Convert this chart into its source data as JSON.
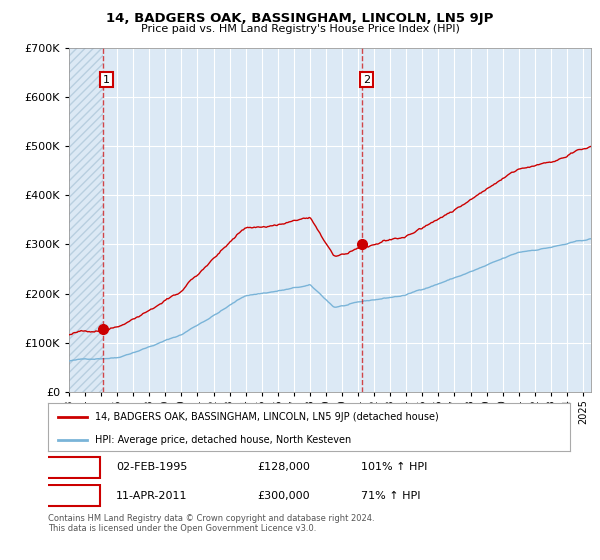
{
  "title": "14, BADGERS OAK, BASSINGHAM, LINCOLN, LN5 9JP",
  "subtitle": "Price paid vs. HM Land Registry's House Price Index (HPI)",
  "legend_line1": "14, BADGERS OAK, BASSINGHAM, LINCOLN, LN5 9JP (detached house)",
  "legend_line2": "HPI: Average price, detached house, North Kesteven",
  "annotation1_date": "02-FEB-1995",
  "annotation1_price": "£128,000",
  "annotation1_hpi": "101% ↑ HPI",
  "annotation2_date": "11-APR-2011",
  "annotation2_price": "£300,000",
  "annotation2_hpi": "71% ↑ HPI",
  "copyright": "Contains HM Land Registry data © Crown copyright and database right 2024.\nThis data is licensed under the Open Government Licence v3.0.",
  "hpi_color": "#7ab4d8",
  "price_color": "#cc0000",
  "bg_color": "#dce9f5",
  "hatch_color": "#b8cfe0",
  "grid_color": "#ffffff",
  "ylim": [
    0,
    700000
  ],
  "yticks": [
    0,
    100000,
    200000,
    300000,
    400000,
    500000,
    600000,
    700000
  ],
  "ytick_labels": [
    "£0",
    "£100K",
    "£200K",
    "£300K",
    "£400K",
    "£500K",
    "£600K",
    "£700K"
  ],
  "sale1_x": 1995.09,
  "sale1_y": 128000,
  "sale2_x": 2011.27,
  "sale2_y": 300000,
  "xmin": 1993.0,
  "xmax": 2025.5,
  "hatch_xmin": 1993.0,
  "hatch_xmax": 1995.09
}
